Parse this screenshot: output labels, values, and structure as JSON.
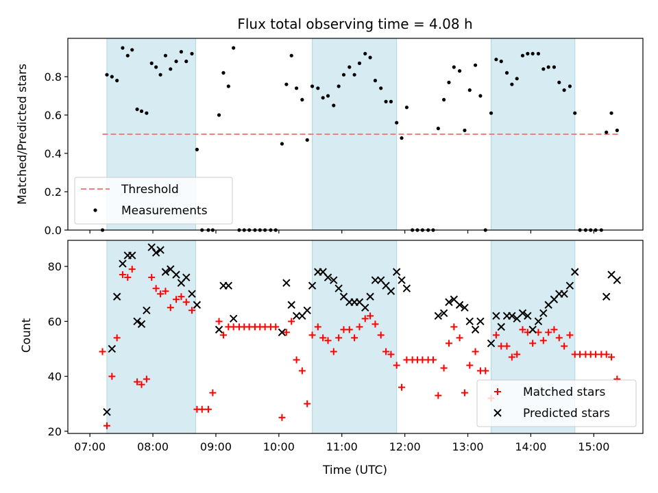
{
  "title": "Flux total observing time = 4.08 h",
  "colors": {
    "band": "#add8e6",
    "threshold": "#f08080",
    "measurement": "#000000",
    "matched": "#ff0000",
    "predicted": "#000000"
  },
  "x_ticks": [
    {
      "t": 7,
      "label": "07:00"
    },
    {
      "t": 8,
      "label": "08:00"
    },
    {
      "t": 9,
      "label": "09:00"
    },
    {
      "t": 10,
      "label": "10:00"
    },
    {
      "t": 11,
      "label": "11:00"
    },
    {
      "t": 12,
      "label": "12:00"
    },
    {
      "t": 13,
      "label": "13:00"
    },
    {
      "t": 14,
      "label": "14:00"
    },
    {
      "t": 15,
      "label": "15:00"
    }
  ],
  "chart_data": [
    {
      "type": "scatter",
      "ylabel": "Matched/Predicted stars",
      "xlim": [
        6.65,
        15.78
      ],
      "ylim": [
        0,
        1.0
      ],
      "y_ticks": [
        0.0,
        0.2,
        0.4,
        0.6,
        0.8
      ],
      "y_tick_labels": [
        "0.0",
        "0.2",
        "0.4",
        "0.6",
        "0.8"
      ],
      "shaded_intervals": [
        [
          7.27,
          8.68
        ],
        [
          10.53,
          11.87
        ],
        [
          13.37,
          14.7
        ]
      ],
      "threshold": {
        "name": "Threshold",
        "y": 0.5,
        "x_range": [
          7.2,
          15.4
        ]
      },
      "legend": {
        "position": "lower-left",
        "entries": [
          "Threshold",
          "Measurements"
        ]
      },
      "series": [
        {
          "name": "Measurements",
          "x": [
            7.2,
            7.27,
            7.35,
            7.43,
            7.52,
            7.6,
            7.67,
            7.75,
            7.82,
            7.9,
            7.98,
            8.05,
            8.12,
            8.2,
            8.28,
            8.37,
            8.45,
            8.53,
            8.62,
            8.7,
            8.78,
            8.88,
            8.95,
            9.05,
            9.12,
            9.2,
            9.28,
            9.37,
            9.45,
            9.53,
            9.62,
            9.7,
            9.78,
            9.87,
            9.95,
            10.05,
            10.12,
            10.2,
            10.28,
            10.37,
            10.45,
            10.53,
            10.62,
            10.7,
            10.78,
            10.87,
            10.95,
            11.03,
            11.12,
            11.2,
            11.28,
            11.37,
            11.45,
            11.53,
            11.62,
            11.7,
            11.78,
            11.87,
            11.95,
            12.03,
            12.12,
            12.2,
            12.28,
            12.37,
            12.45,
            12.53,
            12.62,
            12.7,
            12.78,
            12.87,
            12.95,
            13.03,
            13.12,
            13.2,
            13.28,
            13.37,
            13.45,
            13.53,
            13.62,
            13.7,
            13.78,
            13.87,
            13.95,
            14.03,
            14.12,
            14.2,
            14.28,
            14.37,
            14.45,
            14.53,
            14.62,
            14.7,
            14.78,
            14.87,
            14.95,
            15.03,
            15.12,
            15.2,
            15.28,
            15.37
          ],
          "y": [
            0.0,
            0.81,
            0.8,
            0.78,
            0.95,
            0.91,
            0.94,
            0.63,
            0.62,
            0.61,
            0.87,
            0.85,
            0.81,
            0.91,
            0.84,
            0.88,
            0.93,
            0.88,
            0.92,
            0.42,
            0.0,
            0.0,
            0.0,
            0.6,
            0.82,
            0.75,
            0.95,
            0.0,
            0.0,
            0.0,
            0.0,
            0.0,
            0.0,
            0.0,
            0.0,
            0.45,
            0.76,
            0.91,
            0.74,
            0.68,
            0.47,
            0.75,
            0.74,
            0.69,
            0.7,
            0.65,
            0.75,
            0.81,
            0.85,
            0.81,
            0.87,
            0.92,
            0.9,
            0.78,
            0.74,
            0.67,
            0.67,
            0.56,
            0.48,
            0.64,
            0.0,
            0.0,
            0.0,
            0.0,
            0.0,
            0.53,
            0.68,
            0.77,
            0.85,
            0.83,
            0.52,
            0.73,
            0.86,
            0.7,
            0.0,
            0.61,
            0.89,
            0.88,
            0.82,
            0.76,
            0.79,
            0.91,
            0.92,
            0.92,
            0.92,
            0.84,
            0.85,
            0.85,
            0.77,
            0.73,
            0.75,
            0.61,
            0.0,
            0.0,
            0.0,
            0.0,
            0.0,
            0.51,
            0.61,
            0.52
          ]
        }
      ]
    },
    {
      "type": "scatter",
      "ylabel": "Count",
      "xlabel": "Time (UTC)",
      "xlim": [
        6.65,
        15.78
      ],
      "ylim": [
        19.2,
        89.5
      ],
      "y_ticks": [
        20,
        40,
        60,
        80
      ],
      "y_tick_labels": [
        "20",
        "40",
        "60",
        "80"
      ],
      "shaded_intervals": [
        [
          7.27,
          8.68
        ],
        [
          10.53,
          11.87
        ],
        [
          13.37,
          14.7
        ]
      ],
      "legend": {
        "position": "lower-right",
        "entries": [
          "Matched stars",
          "Predicted stars"
        ]
      },
      "series": [
        {
          "name": "Matched stars",
          "marker": "plus",
          "x": [
            7.2,
            7.27,
            7.35,
            7.43,
            7.52,
            7.6,
            7.67,
            7.75,
            7.82,
            7.9,
            7.98,
            8.05,
            8.12,
            8.2,
            8.28,
            8.37,
            8.45,
            8.53,
            8.62,
            8.7,
            8.78,
            8.88,
            8.95,
            9.05,
            9.12,
            9.2,
            9.28,
            9.37,
            9.45,
            9.53,
            9.62,
            9.7,
            9.78,
            9.87,
            9.95,
            10.05,
            10.12,
            10.2,
            10.28,
            10.37,
            10.45,
            10.53,
            10.62,
            10.7,
            10.78,
            10.87,
            10.95,
            11.03,
            11.12,
            11.2,
            11.28,
            11.37,
            11.45,
            11.53,
            11.62,
            11.7,
            11.78,
            11.87,
            11.95,
            12.03,
            12.12,
            12.2,
            12.28,
            12.37,
            12.45,
            12.53,
            12.62,
            12.7,
            12.78,
            12.87,
            12.95,
            13.03,
            13.12,
            13.2,
            13.28,
            13.37,
            13.45,
            13.53,
            13.62,
            13.7,
            13.78,
            13.87,
            13.95,
            14.03,
            14.12,
            14.2,
            14.28,
            14.37,
            14.45,
            14.53,
            14.62,
            14.7,
            14.78,
            14.87,
            14.95,
            15.03,
            15.12,
            15.2,
            15.28,
            15.37
          ],
          "y": [
            49,
            22,
            40,
            54,
            77,
            76,
            79,
            38,
            37,
            39,
            76,
            72,
            70,
            71,
            65,
            68,
            69,
            67,
            64,
            28,
            28,
            28,
            34,
            60,
            55,
            58,
            58,
            58,
            58,
            58,
            58,
            58,
            58,
            58,
            58,
            25,
            56,
            60,
            46,
            42,
            30,
            55,
            58,
            54,
            53,
            49,
            54,
            57,
            57,
            54,
            58,
            61,
            62,
            59,
            55,
            49,
            48,
            44,
            36,
            46,
            46,
            46,
            46,
            46,
            46,
            33,
            43,
            52,
            58,
            54,
            34,
            44,
            49,
            42,
            42,
            32,
            55,
            51,
            51,
            47,
            48,
            57,
            56,
            52,
            56,
            53,
            56,
            57,
            54,
            51,
            55,
            48,
            48,
            48,
            48,
            48,
            48,
            48,
            47,
            39
          ]
        },
        {
          "name": "Predicted stars",
          "marker": "x",
          "x": [
            7.27,
            7.35,
            7.43,
            7.52,
            7.6,
            7.67,
            7.75,
            7.82,
            7.9,
            7.98,
            8.05,
            8.12,
            8.2,
            8.28,
            8.37,
            8.45,
            8.53,
            8.62,
            8.7,
            9.05,
            9.12,
            9.2,
            9.28,
            10.05,
            10.12,
            10.2,
            10.28,
            10.37,
            10.45,
            10.53,
            10.62,
            10.7,
            10.78,
            10.87,
            10.95,
            11.03,
            11.12,
            11.2,
            11.28,
            11.37,
            11.45,
            11.53,
            11.62,
            11.7,
            11.78,
            11.87,
            11.95,
            12.03,
            12.53,
            12.62,
            12.7,
            12.78,
            12.87,
            12.95,
            13.03,
            13.12,
            13.2,
            13.37,
            13.45,
            13.53,
            13.62,
            13.7,
            13.78,
            13.87,
            13.95,
            14.03,
            14.12,
            14.2,
            14.28,
            14.37,
            14.45,
            14.53,
            14.62,
            14.7,
            15.2,
            15.28,
            15.37
          ],
          "y": [
            27,
            50,
            69,
            81,
            84,
            84,
            60,
            59,
            64,
            87,
            85,
            86,
            78,
            79,
            77,
            74,
            76,
            70,
            66,
            57,
            73,
            73,
            61,
            56,
            74,
            66,
            62,
            62,
            64,
            73,
            78,
            78,
            76,
            75,
            72,
            69,
            67,
            67,
            67,
            65,
            69,
            75,
            75,
            73,
            71,
            78,
            75,
            72,
            62,
            63,
            67,
            68,
            66,
            65,
            60,
            57,
            60,
            52,
            62,
            58,
            62,
            62,
            61,
            63,
            62,
            57,
            60,
            63,
            66,
            68,
            70,
            70,
            73,
            78,
            69,
            77,
            75
          ]
        }
      ]
    }
  ]
}
